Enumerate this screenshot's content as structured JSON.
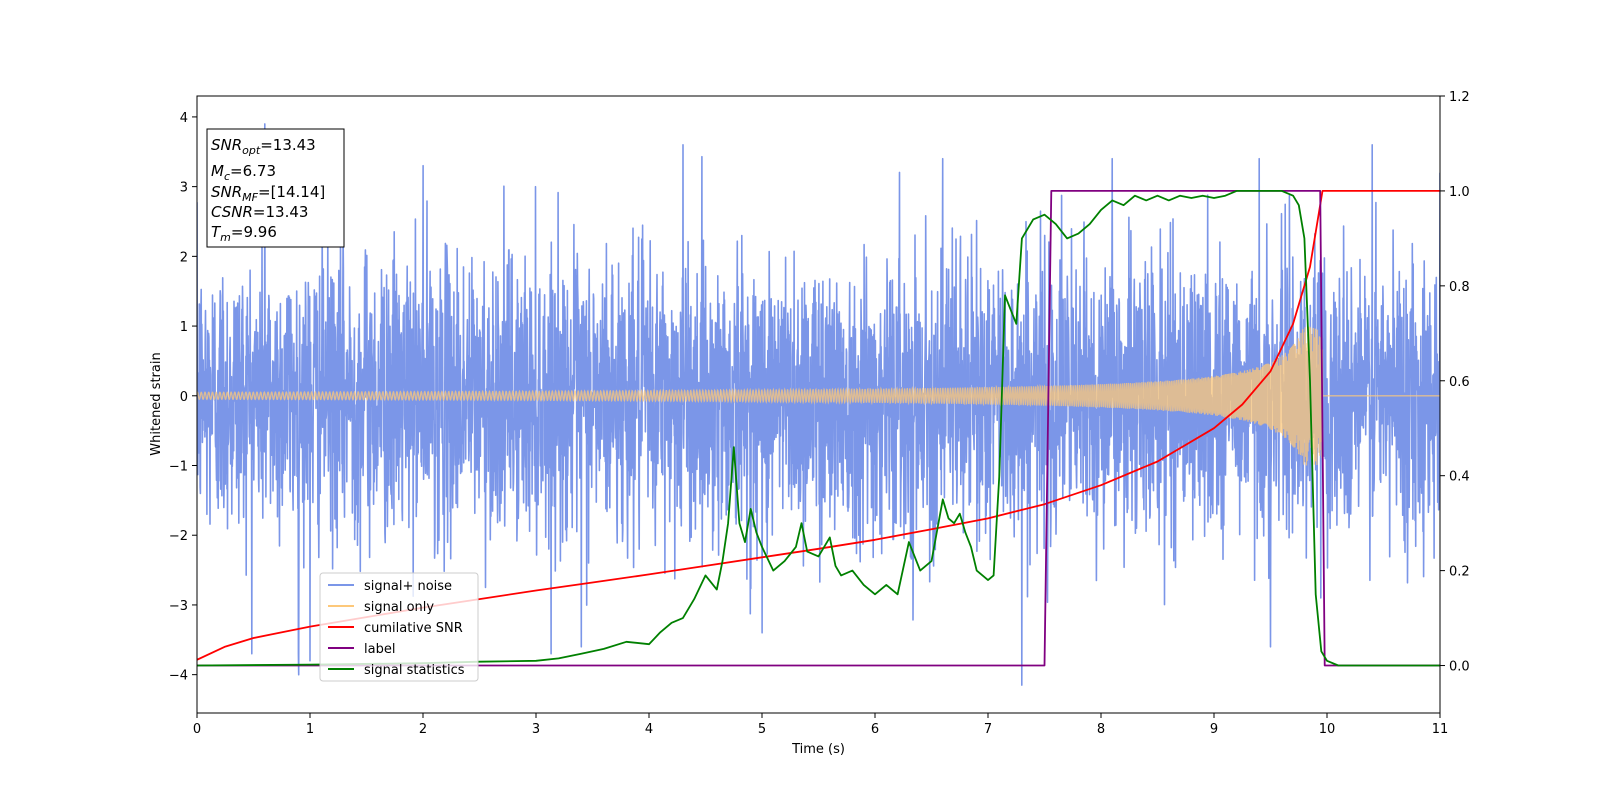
{
  "chart_data": {
    "type": "line",
    "title": "",
    "xlabel": "Time (s)",
    "ylabel": "Whitened strain",
    "xlim": [
      0,
      11
    ],
    "ylim": [
      -4.55,
      4.3
    ],
    "y2lim": [
      -0.1,
      1.2
    ],
    "x_ticks": [
      "0",
      "1",
      "2",
      "3",
      "4",
      "5",
      "6",
      "7",
      "8",
      "9",
      "10",
      "11"
    ],
    "y_ticks": [
      "4",
      "3",
      "2",
      "1",
      "0",
      "−1",
      "−2",
      "−3",
      "−4"
    ],
    "y2_ticks": [
      "1.2",
      "1.0",
      "0.8",
      "0.6",
      "0.4",
      "0.2",
      "0.0"
    ],
    "grid": false,
    "legend_position": "lower-left",
    "annotation_box": {
      "lines": [
        {
          "base": "SNR",
          "sub": "opt",
          "rest": "=13.43"
        },
        {
          "base": "M",
          "sub": "c",
          "rest": "=6.73"
        },
        {
          "base": "SNR",
          "sub": "MF",
          "rest": "=[14.14]"
        },
        {
          "base": "CSNR",
          "sub": "",
          "rest": "=13.43"
        },
        {
          "base": "T",
          "sub": "m",
          "rest": "=9.96"
        }
      ]
    },
    "series": [
      {
        "name": "signal+ noise",
        "color": "#7b96e8",
        "axis": "left",
        "kind": "noise",
        "sigma": 1.0,
        "x_range": [
          0,
          11
        ],
        "peaks": [
          [
            0.6,
            3.9
          ],
          [
            0.9,
            -4.0
          ],
          [
            1.0,
            -3.8
          ],
          [
            2.0,
            3.3
          ],
          [
            3.4,
            -3.6
          ],
          [
            4.3,
            3.6
          ],
          [
            5.0,
            -3.4
          ],
          [
            6.6,
            3.4
          ],
          [
            7.3,
            -4.15
          ],
          [
            8.1,
            3.4
          ],
          [
            9.4,
            3.4
          ],
          [
            9.5,
            -3.6
          ],
          [
            10.4,
            3.6
          ],
          [
            11.0,
            3.2
          ]
        ]
      },
      {
        "name": "signal only",
        "color": "#fdc87a",
        "axis": "left",
        "kind": "chirp",
        "amplitude_start": 0.05,
        "amplitude_end": 1.0,
        "t_merge": 9.96
      },
      {
        "name": "cumilative SNR",
        "color": "#ff0000",
        "axis": "right",
        "x": [
          0,
          0.25,
          0.5,
          1,
          1.5,
          2,
          2.5,
          3,
          3.5,
          4,
          4.5,
          5,
          5.5,
          6,
          6.5,
          7,
          7.5,
          8,
          8.5,
          9,
          9.25,
          9.5,
          9.7,
          9.85,
          9.96,
          10.0,
          11.0
        ],
        "y": [
          0.012,
          0.04,
          0.058,
          0.082,
          0.102,
          0.122,
          0.14,
          0.158,
          0.175,
          0.192,
          0.21,
          0.228,
          0.246,
          0.265,
          0.287,
          0.31,
          0.34,
          0.38,
          0.43,
          0.5,
          0.55,
          0.62,
          0.72,
          0.84,
          1.0,
          1.0,
          1.0
        ]
      },
      {
        "name": "label",
        "color": "#800080",
        "axis": "right",
        "x": [
          0,
          7.5,
          7.56,
          9.94,
          9.98,
          11
        ],
        "y": [
          0,
          0,
          1.0,
          1.0,
          0,
          0
        ]
      },
      {
        "name": "signal statistics",
        "color": "#008000",
        "axis": "right",
        "x": [
          0,
          1,
          2,
          2.5,
          3,
          3.2,
          3.4,
          3.6,
          3.8,
          4.0,
          4.1,
          4.2,
          4.3,
          4.4,
          4.5,
          4.6,
          4.65,
          4.7,
          4.75,
          4.8,
          4.85,
          4.9,
          4.95,
          5.0,
          5.1,
          5.2,
          5.3,
          5.35,
          5.4,
          5.5,
          5.6,
          5.65,
          5.7,
          5.8,
          5.9,
          6.0,
          6.1,
          6.2,
          6.3,
          6.4,
          6.5,
          6.6,
          6.65,
          6.7,
          6.75,
          6.8,
          6.85,
          6.9,
          7.0,
          7.05,
          7.1,
          7.15,
          7.2,
          7.25,
          7.3,
          7.4,
          7.5,
          7.6,
          7.7,
          7.8,
          7.9,
          8.0,
          8.1,
          8.2,
          8.3,
          8.4,
          8.5,
          8.6,
          8.7,
          8.8,
          8.9,
          9.0,
          9.1,
          9.2,
          9.3,
          9.4,
          9.5,
          9.6,
          9.7,
          9.75,
          9.8,
          9.85,
          9.9,
          9.95,
          10.0,
          10.1,
          10.5,
          11.0
        ],
        "y": [
          0,
          0.002,
          0.005,
          0.008,
          0.01,
          0.015,
          0.025,
          0.035,
          0.05,
          0.045,
          0.07,
          0.09,
          0.1,
          0.14,
          0.19,
          0.16,
          0.22,
          0.3,
          0.46,
          0.3,
          0.26,
          0.33,
          0.28,
          0.25,
          0.2,
          0.22,
          0.25,
          0.3,
          0.24,
          0.23,
          0.27,
          0.21,
          0.19,
          0.2,
          0.17,
          0.15,
          0.17,
          0.15,
          0.26,
          0.2,
          0.22,
          0.35,
          0.31,
          0.3,
          0.32,
          0.28,
          0.25,
          0.2,
          0.18,
          0.19,
          0.4,
          0.78,
          0.75,
          0.72,
          0.9,
          0.94,
          0.95,
          0.93,
          0.9,
          0.91,
          0.93,
          0.96,
          0.98,
          0.97,
          0.99,
          0.98,
          0.99,
          0.98,
          0.99,
          0.985,
          0.99,
          0.985,
          0.99,
          1.0,
          1.0,
          1.0,
          1.0,
          1.0,
          0.99,
          0.97,
          0.9,
          0.6,
          0.15,
          0.03,
          0.01,
          0.0,
          0.0,
          0.0
        ]
      }
    ]
  }
}
